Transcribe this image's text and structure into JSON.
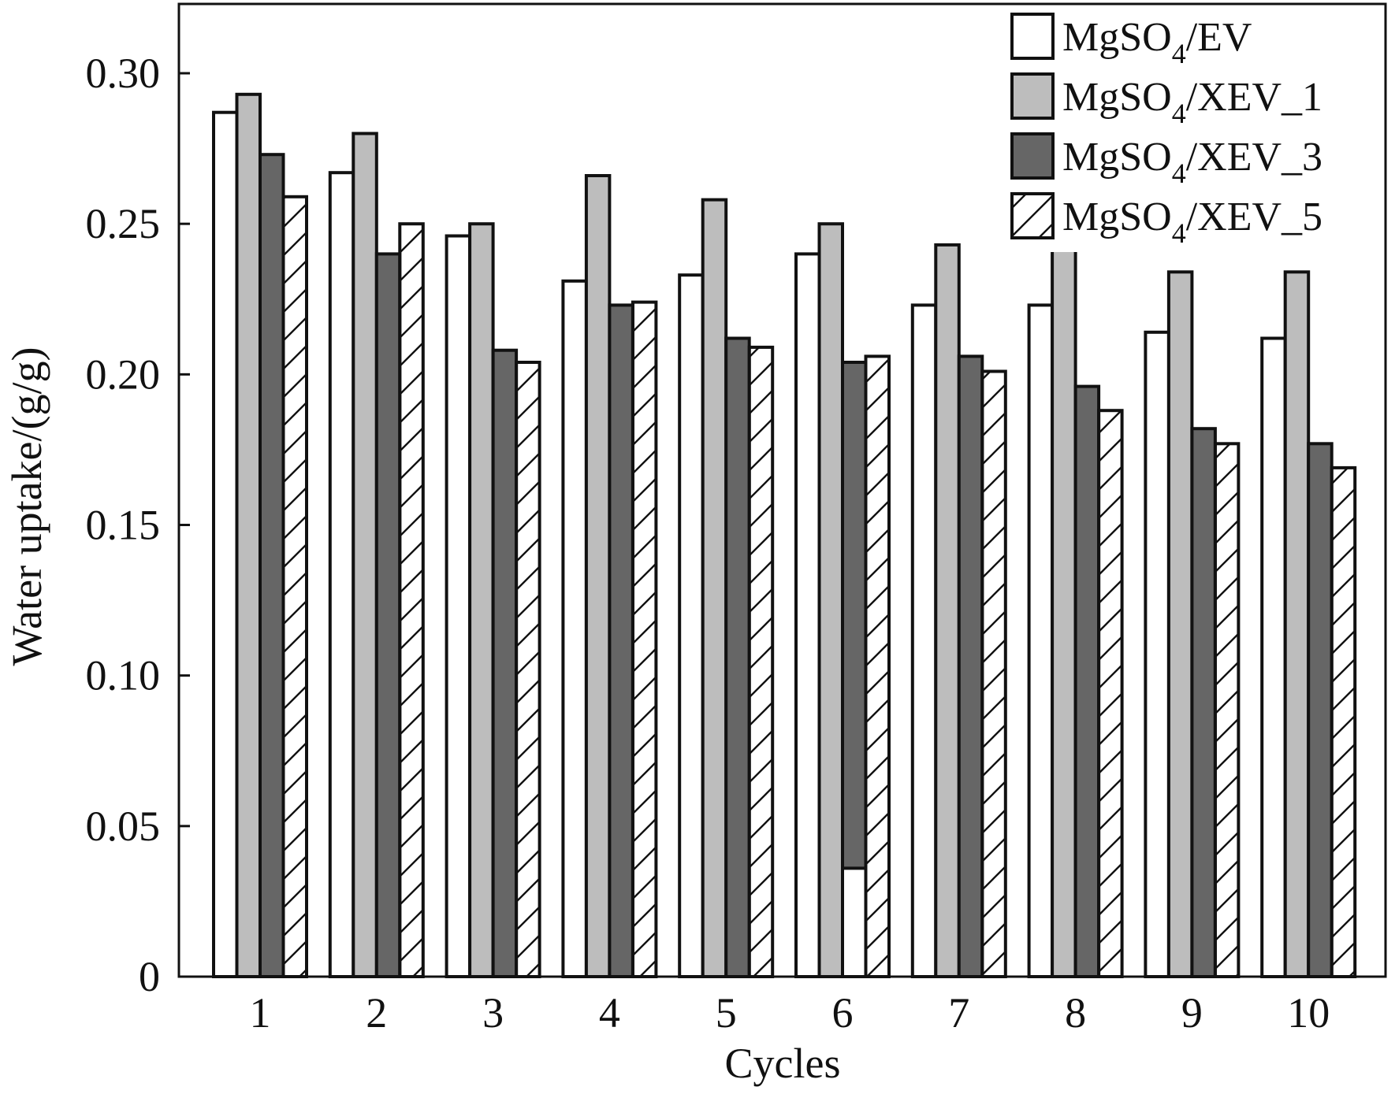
{
  "chart_data": {
    "type": "bar",
    "xlabel": "Cycles",
    "ylabel": "Water uptake/(g/g)",
    "categories": [
      "1",
      "2",
      "3",
      "4",
      "5",
      "6",
      "7",
      "8",
      "9",
      "10"
    ],
    "ylim": [
      0,
      0.3
    ],
    "yticks": [
      "0",
      "0.05",
      "0.10",
      "0.15",
      "0.20",
      "0.25",
      "0.30"
    ],
    "legend_position": "top-right",
    "grid": false,
    "series": [
      {
        "name": "MgSO",
        "sub": "4",
        "suffix": "/EV",
        "fill": "#ffffff",
        "pattern": "none",
        "values": [
          0.287,
          0.267,
          0.246,
          0.231,
          0.233,
          0.24,
          0.223,
          0.223,
          0.214,
          0.212
        ]
      },
      {
        "name": "MgSO",
        "sub": "4",
        "suffix": "/XEV_1",
        "fill": "#bdbdbd",
        "pattern": "none",
        "values": [
          0.293,
          0.28,
          0.25,
          0.266,
          0.258,
          0.25,
          0.243,
          0.243,
          0.234,
          0.234
        ]
      },
      {
        "name": "MgSO",
        "sub": "4",
        "suffix": "/XEV_3",
        "fill": "#666666",
        "pattern": "none",
        "values": [
          0.273,
          0.24,
          0.208,
          0.223,
          0.212,
          0.204,
          0.206,
          0.196,
          0.182,
          0.177
        ]
      },
      {
        "name": "MgSO",
        "sub": "4",
        "suffix": "/XEV_5",
        "fill": "#ffffff",
        "pattern": "diagonal-hatch",
        "values": [
          0.259,
          0.25,
          0.204,
          0.224,
          0.209,
          0.206,
          0.201,
          0.188,
          0.177,
          0.169
        ]
      }
    ],
    "annotations": [
      {
        "note": "white segment at base of cycle 6 MgSO4/XEV_3 bar",
        "category": "6",
        "series_index": 2,
        "value": 0.036
      }
    ]
  }
}
